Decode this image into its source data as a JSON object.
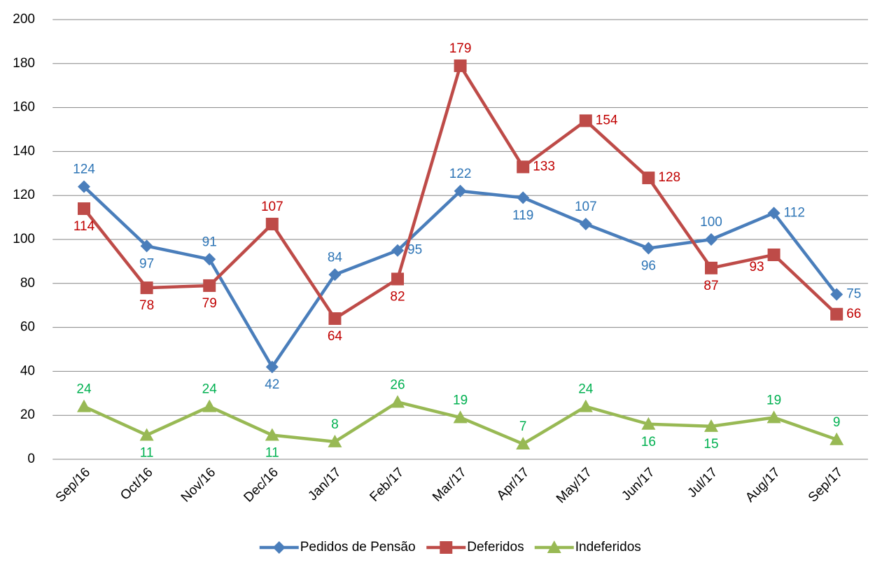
{
  "chart_data": {
    "type": "line",
    "categories": [
      "Sep/16",
      "Oct/16",
      "Nov/16",
      "Dec/16",
      "Jan/17",
      "Feb/17",
      "Mar/17",
      "Apr/17",
      "May/17",
      "Jun/17",
      "Jul/17",
      "Aug/17",
      "Sep/17"
    ],
    "series": [
      {
        "name": "Pedidos de Pensão",
        "color": "#4a7ebb",
        "label_color": "#2e75b6",
        "marker": "diamond",
        "values": [
          124,
          97,
          91,
          42,
          84,
          95,
          122,
          119,
          107,
          96,
          100,
          112,
          75
        ]
      },
      {
        "name": "Deferidos",
        "color": "#be4b48",
        "label_color": "#c00000",
        "marker": "square",
        "values": [
          114,
          78,
          79,
          107,
          64,
          82,
          179,
          133,
          154,
          128,
          87,
          93,
          66
        ]
      },
      {
        "name": "Indeferidos",
        "color": "#98b954",
        "label_color": "#00b050",
        "marker": "triangle",
        "values": [
          24,
          11,
          24,
          11,
          8,
          26,
          19,
          7,
          24,
          16,
          15,
          19,
          9
        ]
      }
    ],
    "ylim": [
      0,
      200
    ],
    "yticks": [
      0,
      20,
      40,
      60,
      80,
      100,
      120,
      140,
      160,
      180,
      200
    ],
    "grid": true,
    "legend": "bottom"
  }
}
